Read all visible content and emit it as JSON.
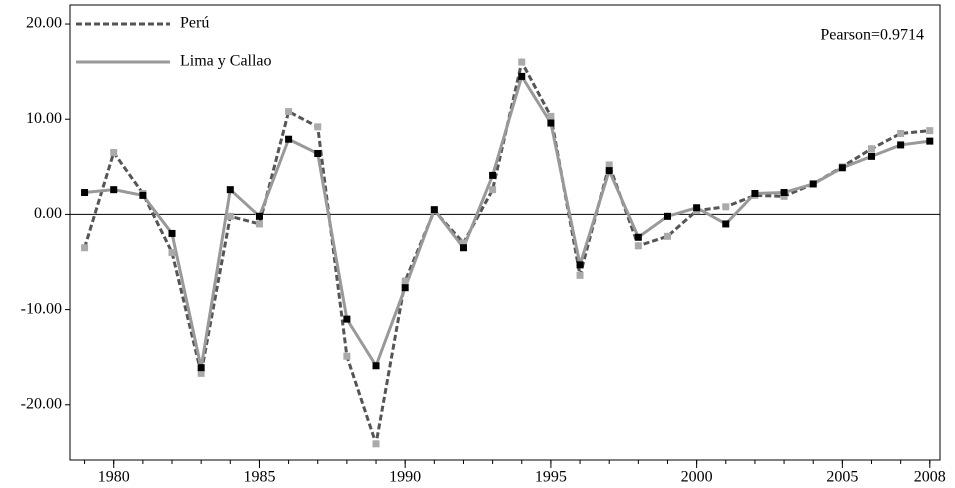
{
  "chart_data": {
    "type": "line",
    "annotation": "Pearson=0.9714",
    "x": [
      1979,
      1980,
      1981,
      1982,
      1983,
      1984,
      1985,
      1986,
      1987,
      1988,
      1989,
      1990,
      1991,
      1992,
      1993,
      1994,
      1995,
      1996,
      1997,
      1998,
      1999,
      2000,
      2001,
      2002,
      2003,
      2004,
      2005,
      2006,
      2007,
      2008
    ],
    "series": [
      {
        "name": "Perú",
        "color": "#555555",
        "marker_color": "#aaaaaa",
        "dashed": true,
        "values": [
          -3.5,
          6.5,
          2.2,
          -4.0,
          -16.7,
          -0.2,
          -1.0,
          10.8,
          9.2,
          -14.9,
          -24.1,
          -7.0,
          0.4,
          -3.0,
          2.6,
          16.0,
          10.3,
          -6.4,
          5.2,
          -3.3,
          -2.3,
          0.4,
          0.8,
          2.0,
          1.9,
          3.2,
          5.0,
          6.9,
          8.5,
          8.8
        ]
      },
      {
        "name": "Lima y Callao",
        "color": "#999999",
        "marker_color": "#000000",
        "dashed": false,
        "values": [
          2.3,
          2.6,
          2.0,
          -2.0,
          -16.1,
          2.6,
          -0.2,
          7.9,
          6.4,
          -11.0,
          -15.9,
          -7.7,
          0.5,
          -3.5,
          4.1,
          14.5,
          9.6,
          -5.3,
          4.6,
          -2.4,
          -0.2,
          0.7,
          -1.0,
          2.2,
          2.3,
          3.2,
          4.9,
          6.1,
          7.3,
          7.7
        ]
      }
    ],
    "xlim": [
      1978.5,
      2008.35
    ],
    "xticks": [
      1980,
      1985,
      1990,
      1995,
      2000,
      2005,
      2008
    ],
    "ylim": [
      -25.8,
      22
    ],
    "yticks": [
      {
        "value": -20,
        "label": "-20.00"
      },
      {
        "value": -10,
        "label": "-10.00"
      },
      {
        "value": 0,
        "label": "0.00"
      },
      {
        "value": 10,
        "label": "10.00"
      },
      {
        "value": 20,
        "label": "20.00"
      }
    ],
    "zero_line": true,
    "legend": "top-left"
  }
}
